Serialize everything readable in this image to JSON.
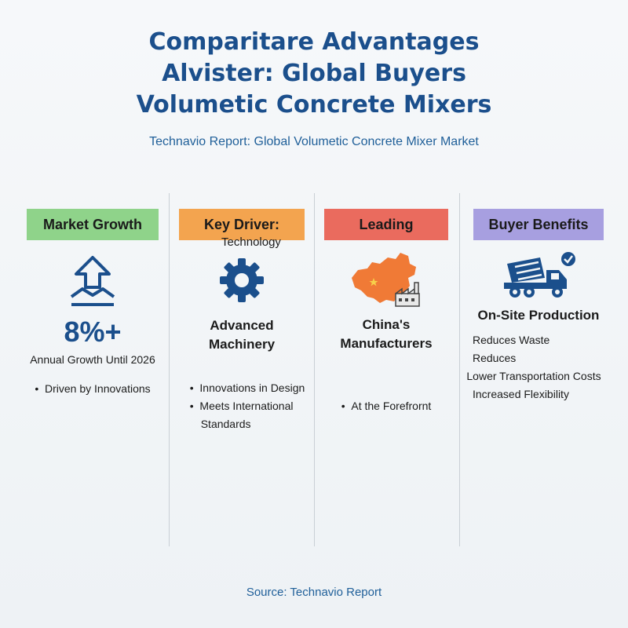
{
  "title": {
    "line1": "Comparitare Advantages",
    "line2": "Alvister: Global Buyers",
    "line3": "Volumetic Concrete Mixers"
  },
  "subtitle": "Technavio Report: Global Volumetic Concrete Mixer Market",
  "columns": [
    {
      "header": "Market Growth",
      "header_color": "#8fd38a",
      "icon": "growth-arrow-icon",
      "value": "8%+",
      "caption": "Annual Growth Until 2026",
      "bullets": [
        "Driven by Innovations"
      ]
    },
    {
      "header": "Key Driver:",
      "header_sub": "Technology",
      "header_color": "#f3a44f",
      "icon": "gear-icon",
      "title": [
        "Advanced",
        "Machinery"
      ],
      "bullets": [
        "Innovations in Design",
        "Meets International"
      ],
      "bullet_continuation": "Standards"
    },
    {
      "header": "Leading",
      "header_color": "#ea6b5e",
      "icon": "china-map-factory-icon",
      "title": [
        "China's",
        "Manufacturers"
      ],
      "bullets": [
        "At the Forefrornt"
      ]
    },
    {
      "header": "Buyer Benefits",
      "header_color": "#a79fe0",
      "icon": "mixer-truck-check-icon",
      "title": [
        "On-Site Production"
      ],
      "bullets": [
        "Reduces Waste",
        "Reduces"
      ],
      "bullet_continuation": "Lower Transportation Costs",
      "bullets_after": [
        "Increased Flexibility"
      ]
    }
  ],
  "source": "Source: Technavio Report",
  "colors": {
    "title": "#1b4f8c",
    "accent_blue": "#1f5f99",
    "map_orange": "#f07a36"
  }
}
